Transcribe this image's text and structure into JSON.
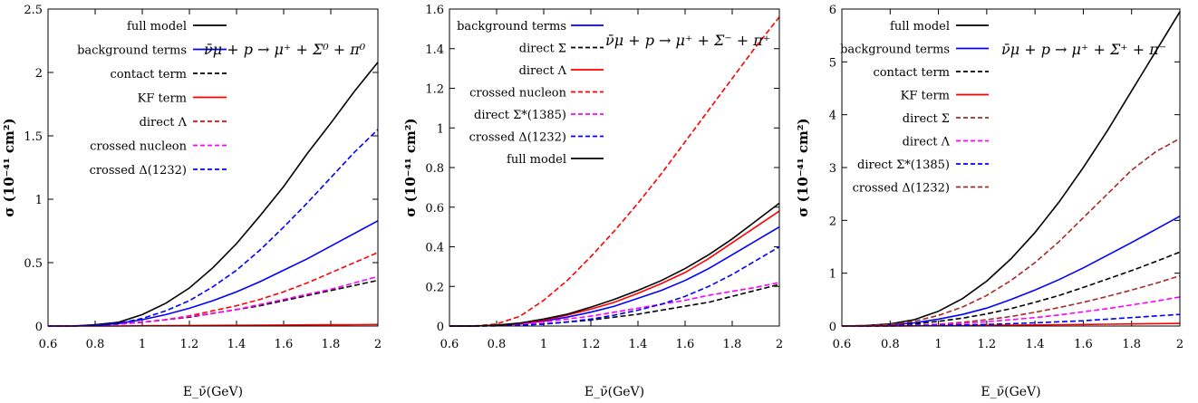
{
  "chart_data": [
    {
      "type": "line",
      "reaction": "ν̄μ + p → μ⁺ + Σ⁰ + π⁰",
      "xlabel": "E_ν̄(GeV)",
      "ylabel": "σ (10⁻⁴¹ cm²)",
      "xlim": [
        0.6,
        2
      ],
      "ylim": [
        0,
        2.5
      ],
      "xticks": [
        "0.6",
        "0.8",
        "1",
        "1.2",
        "1.4",
        "1.6",
        "1.8",
        "2"
      ],
      "yticks": [
        "0",
        "0.5",
        "1",
        "1.5",
        "2",
        "2.5"
      ],
      "legend_position": "top-left",
      "x": [
        0.6,
        0.7,
        0.8,
        0.9,
        1.0,
        1.1,
        1.2,
        1.3,
        1.4,
        1.5,
        1.6,
        1.7,
        1.8,
        1.9,
        2.0
      ],
      "series": [
        {
          "name": "full model",
          "color": "#000000",
          "dash": "solid",
          "values": [
            0,
            0,
            0.01,
            0.03,
            0.09,
            0.18,
            0.3,
            0.46,
            0.65,
            0.87,
            1.1,
            1.36,
            1.6,
            1.85,
            2.08
          ]
        },
        {
          "name": "background terms",
          "color": "#0000ff",
          "dash": "solid",
          "values": [
            0,
            0,
            0.005,
            0.02,
            0.05,
            0.09,
            0.14,
            0.2,
            0.27,
            0.35,
            0.44,
            0.53,
            0.63,
            0.73,
            0.83
          ]
        },
        {
          "name": "contact term",
          "color": "#000000",
          "dash": "dashed",
          "values": [
            0,
            0,
            0.005,
            0.015,
            0.03,
            0.05,
            0.07,
            0.1,
            0.13,
            0.16,
            0.2,
            0.24,
            0.28,
            0.32,
            0.36
          ]
        },
        {
          "name": "KF term",
          "color": "#ff0000",
          "dash": "solid",
          "values": [
            0,
            0,
            0,
            0,
            0.002,
            0.003,
            0.004,
            0.005,
            0.006,
            0.007,
            0.008,
            0.009,
            0.01,
            0.011,
            0.012
          ]
        },
        {
          "name": "direct Λ",
          "color": "#ff0000",
          "dash": "dashed",
          "values": [
            0,
            0,
            0.005,
            0.015,
            0.03,
            0.05,
            0.08,
            0.12,
            0.16,
            0.21,
            0.27,
            0.34,
            0.42,
            0.5,
            0.58
          ]
        },
        {
          "name": "crossed nucleon",
          "color": "#ff00ff",
          "dash": "dashed",
          "values": [
            0,
            0,
            0.005,
            0.015,
            0.03,
            0.05,
            0.075,
            0.1,
            0.13,
            0.17,
            0.21,
            0.25,
            0.29,
            0.34,
            0.39
          ]
        },
        {
          "name": "crossed Δ(1232)",
          "color": "#0000ff",
          "dash": "dashed",
          "values": [
            0,
            0,
            0.005,
            0.02,
            0.06,
            0.12,
            0.2,
            0.31,
            0.44,
            0.6,
            0.78,
            0.97,
            1.17,
            1.37,
            1.55
          ]
        }
      ]
    },
    {
      "type": "line",
      "reaction": "ν̄μ + p → μ⁺ + Σ⁻ + π⁺",
      "xlabel": "E_ν̄(GeV)",
      "ylabel": "σ (10⁻⁴¹ cm²)",
      "xlim": [
        0.6,
        2
      ],
      "ylim": [
        0,
        1.6
      ],
      "xticks": [
        "0.6",
        "0.8",
        "1",
        "1.2",
        "1.4",
        "1.6",
        "1.8",
        "2"
      ],
      "yticks": [
        "0",
        "0.2",
        "0.4",
        "0.6",
        "0.8",
        "1",
        "1.2",
        "1.4",
        "1.6"
      ],
      "legend_position": "top-left",
      "x": [
        0.6,
        0.7,
        0.8,
        0.9,
        1.0,
        1.1,
        1.2,
        1.3,
        1.4,
        1.5,
        1.6,
        1.7,
        1.8,
        1.9,
        2.0
      ],
      "series": [
        {
          "name": "background terms",
          "color": "#0000ff",
          "dash": "solid",
          "values": [
            0,
            0,
            0.003,
            0.01,
            0.025,
            0.045,
            0.07,
            0.1,
            0.14,
            0.18,
            0.23,
            0.29,
            0.36,
            0.43,
            0.5
          ]
        },
        {
          "name": "direct Σ",
          "color": "#000000",
          "dash": "dashed",
          "values": [
            0,
            0,
            0.001,
            0.004,
            0.01,
            0.02,
            0.03,
            0.045,
            0.06,
            0.08,
            0.1,
            0.12,
            0.15,
            0.18,
            0.21
          ]
        },
        {
          "name": "direct Λ",
          "color": "#ff0000",
          "dash": "solid",
          "values": [
            0,
            0,
            0.003,
            0.012,
            0.03,
            0.055,
            0.085,
            0.12,
            0.165,
            0.215,
            0.27,
            0.34,
            0.42,
            0.5,
            0.58
          ]
        },
        {
          "name": "crossed nucleon",
          "color": "#ff0000",
          "dash": "dashed",
          "values": [
            0,
            0,
            0.01,
            0.05,
            0.13,
            0.23,
            0.35,
            0.48,
            0.62,
            0.77,
            0.93,
            1.09,
            1.25,
            1.41,
            1.56
          ]
        },
        {
          "name": "direct Σ*(1385)",
          "color": "#ff00ff",
          "dash": "dashed",
          "values": [
            0,
            0,
            0.003,
            0.01,
            0.02,
            0.035,
            0.05,
            0.07,
            0.09,
            0.11,
            0.13,
            0.155,
            0.175,
            0.195,
            0.22
          ]
        },
        {
          "name": "crossed Δ(1232)",
          "color": "#0000ff",
          "dash": "dashed",
          "values": [
            0,
            0,
            0.001,
            0.004,
            0.01,
            0.02,
            0.035,
            0.055,
            0.08,
            0.11,
            0.15,
            0.2,
            0.26,
            0.33,
            0.4
          ]
        },
        {
          "name": "full model",
          "color": "#000000",
          "dash": "solid",
          "values": [
            0,
            0,
            0.004,
            0.015,
            0.035,
            0.06,
            0.095,
            0.135,
            0.18,
            0.23,
            0.29,
            0.36,
            0.44,
            0.53,
            0.62
          ]
        }
      ]
    },
    {
      "type": "line",
      "reaction": "ν̄μ + p → μ⁺ + Σ⁺ + π⁻",
      "xlabel": "E_ν̄(GeV)",
      "ylabel": "σ (10⁻⁴¹ cm²)",
      "xlim": [
        0.6,
        2
      ],
      "ylim": [
        0,
        6
      ],
      "xticks": [
        "0.6",
        "0.8",
        "1",
        "1.2",
        "1.4",
        "1.6",
        "1.8",
        "2"
      ],
      "yticks": [
        "0",
        "1",
        "2",
        "3",
        "4",
        "5",
        "6"
      ],
      "legend_position": "top-left",
      "x": [
        0.6,
        0.7,
        0.8,
        0.9,
        1.0,
        1.1,
        1.2,
        1.3,
        1.4,
        1.5,
        1.6,
        1.7,
        1.8,
        1.9,
        2.0
      ],
      "series": [
        {
          "name": "full model",
          "color": "#000000",
          "dash": "solid",
          "values": [
            0,
            0.01,
            0.04,
            0.12,
            0.28,
            0.52,
            0.85,
            1.27,
            1.77,
            2.35,
            3.0,
            3.7,
            4.45,
            5.2,
            5.95
          ]
        },
        {
          "name": "background terms",
          "color": "#0000ff",
          "dash": "solid",
          "values": [
            0,
            0,
            0.02,
            0.06,
            0.13,
            0.22,
            0.34,
            0.5,
            0.68,
            0.88,
            1.1,
            1.34,
            1.58,
            1.83,
            2.08
          ]
        },
        {
          "name": "contact term",
          "color": "#000000",
          "dash": "dashed",
          "values": [
            0,
            0,
            0.01,
            0.04,
            0.09,
            0.15,
            0.23,
            0.33,
            0.45,
            0.58,
            0.73,
            0.89,
            1.05,
            1.22,
            1.4
          ]
        },
        {
          "name": "KF term",
          "color": "#ff0000",
          "dash": "solid",
          "values": [
            0,
            0,
            0.001,
            0.003,
            0.006,
            0.009,
            0.013,
            0.017,
            0.021,
            0.025,
            0.03,
            0.035,
            0.04,
            0.045,
            0.05
          ]
        },
        {
          "name": "direct Σ",
          "color": "#a52a2a",
          "dash": "dashed",
          "values": [
            0,
            0,
            0.005,
            0.015,
            0.035,
            0.07,
            0.12,
            0.18,
            0.26,
            0.35,
            0.45,
            0.56,
            0.68,
            0.81,
            0.95
          ]
        },
        {
          "name": "direct Λ",
          "color": "#ff00ff",
          "dash": "dashed",
          "values": [
            0,
            0,
            0.005,
            0.015,
            0.03,
            0.05,
            0.08,
            0.12,
            0.16,
            0.21,
            0.27,
            0.33,
            0.4,
            0.47,
            0.55
          ]
        },
        {
          "name": "direct Σ*(1385)",
          "color": "#0000ff",
          "dash": "dashed",
          "values": [
            0,
            0,
            0.002,
            0.006,
            0.012,
            0.02,
            0.03,
            0.045,
            0.06,
            0.08,
            0.1,
            0.13,
            0.16,
            0.19,
            0.22
          ]
        },
        {
          "name": "crossed Δ(1232)",
          "color": "#a52a2a",
          "dash": "dashed",
          "values": [
            0,
            0.005,
            0.03,
            0.09,
            0.2,
            0.36,
            0.58,
            0.86,
            1.2,
            1.6,
            2.05,
            2.5,
            2.95,
            3.3,
            3.55
          ]
        }
      ]
    }
  ]
}
